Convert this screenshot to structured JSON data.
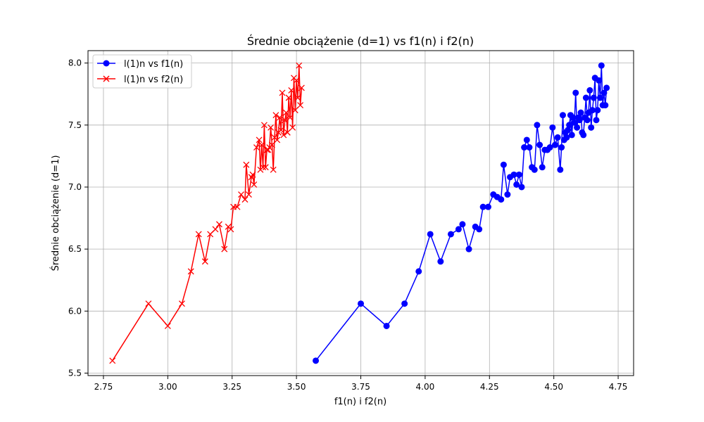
{
  "chart_data": {
    "type": "line",
    "title": "Średnie obciążenie (d=1) vs f1(n) i f2(n)",
    "xlabel": "f1(n) i f2(n)",
    "ylabel": "Średnie obciążenie (d=1)",
    "xlim": [
      2.69,
      4.81
    ],
    "ylim": [
      5.48,
      8.1
    ],
    "xticks": [
      "2.75",
      "3.00",
      "3.25",
      "3.50",
      "3.75",
      "4.00",
      "4.25",
      "4.50",
      "4.75"
    ],
    "yticks": [
      "5.5",
      "6.0",
      "6.5",
      "7.0",
      "7.5",
      "8.0"
    ],
    "grid": true,
    "legend_position": "top-left",
    "series": [
      {
        "name": "l(1)n vs f1(n)",
        "color": "#0000ff",
        "marker": "circle",
        "x": [
          3.575,
          3.75,
          3.85,
          3.92,
          3.975,
          4.02,
          4.06,
          4.1,
          4.13,
          4.145,
          4.17,
          4.195,
          4.21,
          4.225,
          4.245,
          4.265,
          4.28,
          4.295,
          4.305,
          4.32,
          4.33,
          4.345,
          4.355,
          4.365,
          4.375,
          4.385,
          4.395,
          4.405,
          4.415,
          4.425,
          4.435,
          4.445,
          4.455,
          4.465,
          4.475,
          4.485,
          4.495,
          4.505,
          4.515,
          4.525,
          4.53,
          4.535,
          4.54,
          4.545,
          4.55,
          4.555,
          4.56,
          4.565,
          4.57,
          4.575,
          4.58,
          4.585,
          4.59,
          4.595,
          4.6,
          4.605,
          4.61,
          4.615,
          4.62,
          4.625,
          4.63,
          4.635,
          4.64,
          4.645,
          4.65,
          4.655,
          4.66,
          4.665,
          4.67,
          4.675,
          4.68,
          4.685,
          4.69,
          4.695,
          4.7,
          4.705
        ],
        "y": [
          5.6,
          6.06,
          5.88,
          6.06,
          6.32,
          6.62,
          6.4,
          6.62,
          6.66,
          6.7,
          6.5,
          6.68,
          6.66,
          6.84,
          6.84,
          6.94,
          6.92,
          6.9,
          7.18,
          6.94,
          7.08,
          7.1,
          7.02,
          7.1,
          7.0,
          7.32,
          7.38,
          7.32,
          7.16,
          7.14,
          7.5,
          7.34,
          7.16,
          7.3,
          7.3,
          7.32,
          7.48,
          7.34,
          7.4,
          7.14,
          7.32,
          7.58,
          7.38,
          7.44,
          7.4,
          7.46,
          7.5,
          7.58,
          7.42,
          7.56,
          7.52,
          7.76,
          7.48,
          7.56,
          7.54,
          7.6,
          7.44,
          7.42,
          7.56,
          7.72,
          7.54,
          7.6,
          7.78,
          7.48,
          7.62,
          7.72,
          7.88,
          7.54,
          7.62,
          7.86,
          7.72,
          7.98,
          7.66,
          7.76,
          7.66,
          7.8
        ]
      },
      {
        "name": "l(1)n vs f2(n)",
        "color": "#ff0000",
        "marker": "x",
        "x": [
          2.785,
          2.925,
          3.0,
          3.055,
          3.09,
          3.12,
          3.145,
          3.165,
          3.185,
          3.2,
          3.22,
          3.235,
          3.245,
          3.255,
          3.27,
          3.285,
          3.3,
          3.305,
          3.315,
          3.325,
          3.33,
          3.335,
          3.345,
          3.355,
          3.36,
          3.365,
          3.37,
          3.375,
          3.38,
          3.385,
          3.39,
          3.395,
          3.4,
          3.405,
          3.41,
          3.415,
          3.42,
          3.425,
          3.43,
          3.435,
          3.44,
          3.445,
          3.45,
          3.455,
          3.46,
          3.465,
          3.47,
          3.475,
          3.48,
          3.485,
          3.49,
          3.495,
          3.5,
          3.505,
          3.51,
          3.515,
          3.52
        ],
        "y": [
          5.6,
          6.06,
          5.88,
          6.06,
          6.32,
          6.62,
          6.4,
          6.62,
          6.66,
          6.7,
          6.5,
          6.68,
          6.66,
          6.84,
          6.84,
          6.94,
          6.9,
          7.18,
          6.94,
          7.08,
          7.1,
          7.02,
          7.32,
          7.38,
          7.14,
          7.34,
          7.16,
          7.5,
          7.16,
          7.3,
          7.3,
          7.32,
          7.48,
          7.34,
          7.14,
          7.4,
          7.58,
          7.38,
          7.44,
          7.56,
          7.46,
          7.76,
          7.42,
          7.54,
          7.6,
          7.44,
          7.72,
          7.56,
          7.78,
          7.48,
          7.88,
          7.62,
          7.86,
          7.72,
          7.98,
          7.66,
          7.8
        ]
      }
    ]
  }
}
